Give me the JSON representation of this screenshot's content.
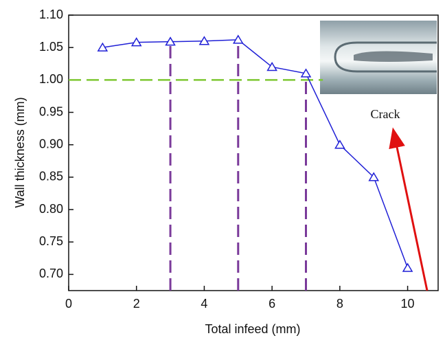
{
  "chart_data": {
    "type": "line",
    "x_label": "Total infeed (mm)",
    "y_label": "Wall thickness (mm)",
    "x": [
      1,
      2,
      3,
      4,
      5,
      6,
      7,
      8,
      9,
      10
    ],
    "series": [
      {
        "color": "#1f1fd6",
        "marker": "triangle",
        "values": [
          1.05,
          1.058,
          1.059,
          1.06,
          1.062,
          1.02,
          1.01,
          0.9,
          0.85,
          0.71
        ]
      }
    ],
    "xlim": [
      0,
      10.9
    ],
    "xticks": [
      0,
      2,
      4,
      6,
      8,
      10
    ],
    "ylim": [
      0.675,
      1.1
    ],
    "yticks": [
      {
        "value": 0.7,
        "label": "0.70"
      },
      {
        "value": 0.75,
        "label": "0.75"
      },
      {
        "value": 0.8,
        "label": "0.80"
      },
      {
        "value": 0.85,
        "label": "0.85"
      },
      {
        "value": 0.9,
        "label": "0.90"
      },
      {
        "value": 0.95,
        "label": "0.95"
      },
      {
        "value": 1.0,
        "label": "1.00"
      },
      {
        "value": 1.05,
        "label": "1.05"
      },
      {
        "value": 1.1,
        "label": "1.10"
      }
    ],
    "reference_line": {
      "y": 1.0,
      "x_end": 7.5,
      "color": "#7dc832"
    },
    "vertical_lines": {
      "x": [
        3,
        5,
        7
      ],
      "color": "#7a3a9a"
    },
    "annotation": {
      "text": "Crack",
      "color": "#e01010"
    }
  }
}
